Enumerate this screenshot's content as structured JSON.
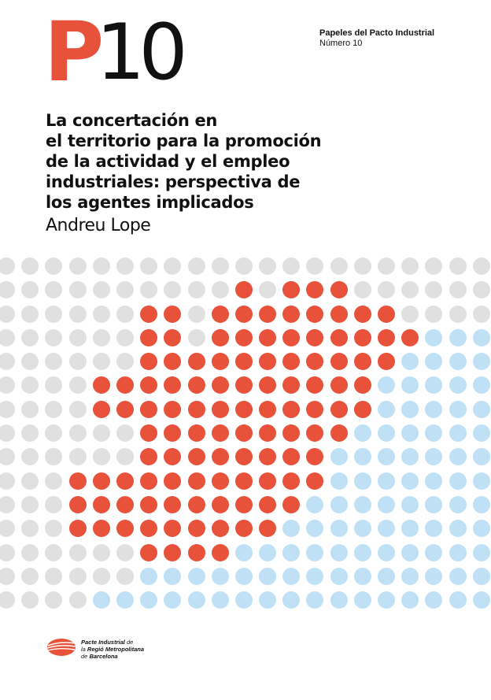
{
  "logo": {
    "letter": "P",
    "number": "10"
  },
  "series": {
    "name": "Papeles del Pacto Industrial",
    "number": "Número 10"
  },
  "title_lines": [
    "La concertación en",
    "el territorio para la promoción",
    "de la actividad y el empleo",
    "industriales: perspectiva de",
    "los agentes implicados"
  ],
  "author": "Andreu Lope",
  "colors": {
    "red": "#e8513a",
    "grey": "#e0e0e0",
    "blue": "#bfe0f5",
    "text": "#111111"
  },
  "dot_pattern": [
    "ggggggggggggggggggggg",
    "ggggggggggrgrrrgggggg",
    "ggggggrrgrrrrrrrrgggg",
    "ggggggrrgrrrrrrrrrbbb",
    "ggggggrrrrrrrrrrrbbbb",
    "ggggrrrrrrrrrrrrbbbbb",
    "ggggrrrrrrrrrrrrbbbbb",
    "ggggggrrrrrrrrrbbbbbb",
    "ggggggrrrrrrrrbbbbbbb",
    "gggrrrrrrrrrrrbbbbbbb",
    "gggrrrrrrrrrrbbbbbbbb",
    "gggrrrrrrrrrbbbbbbbbb",
    "ggggggrrrrbbbbbbbbbbb",
    "ggggggbbbbbbbbbbbbbbb",
    "ggggbbbbbbbbbbbbbbbbb"
  ],
  "footer": {
    "line1_bold": "Pacte Industrial",
    "line1_rest": " de",
    "line2_pre": "la ",
    "line2_bold": "Regió Metropolitana",
    "line3_pre": "de ",
    "line3_bold": "Barcelona"
  }
}
